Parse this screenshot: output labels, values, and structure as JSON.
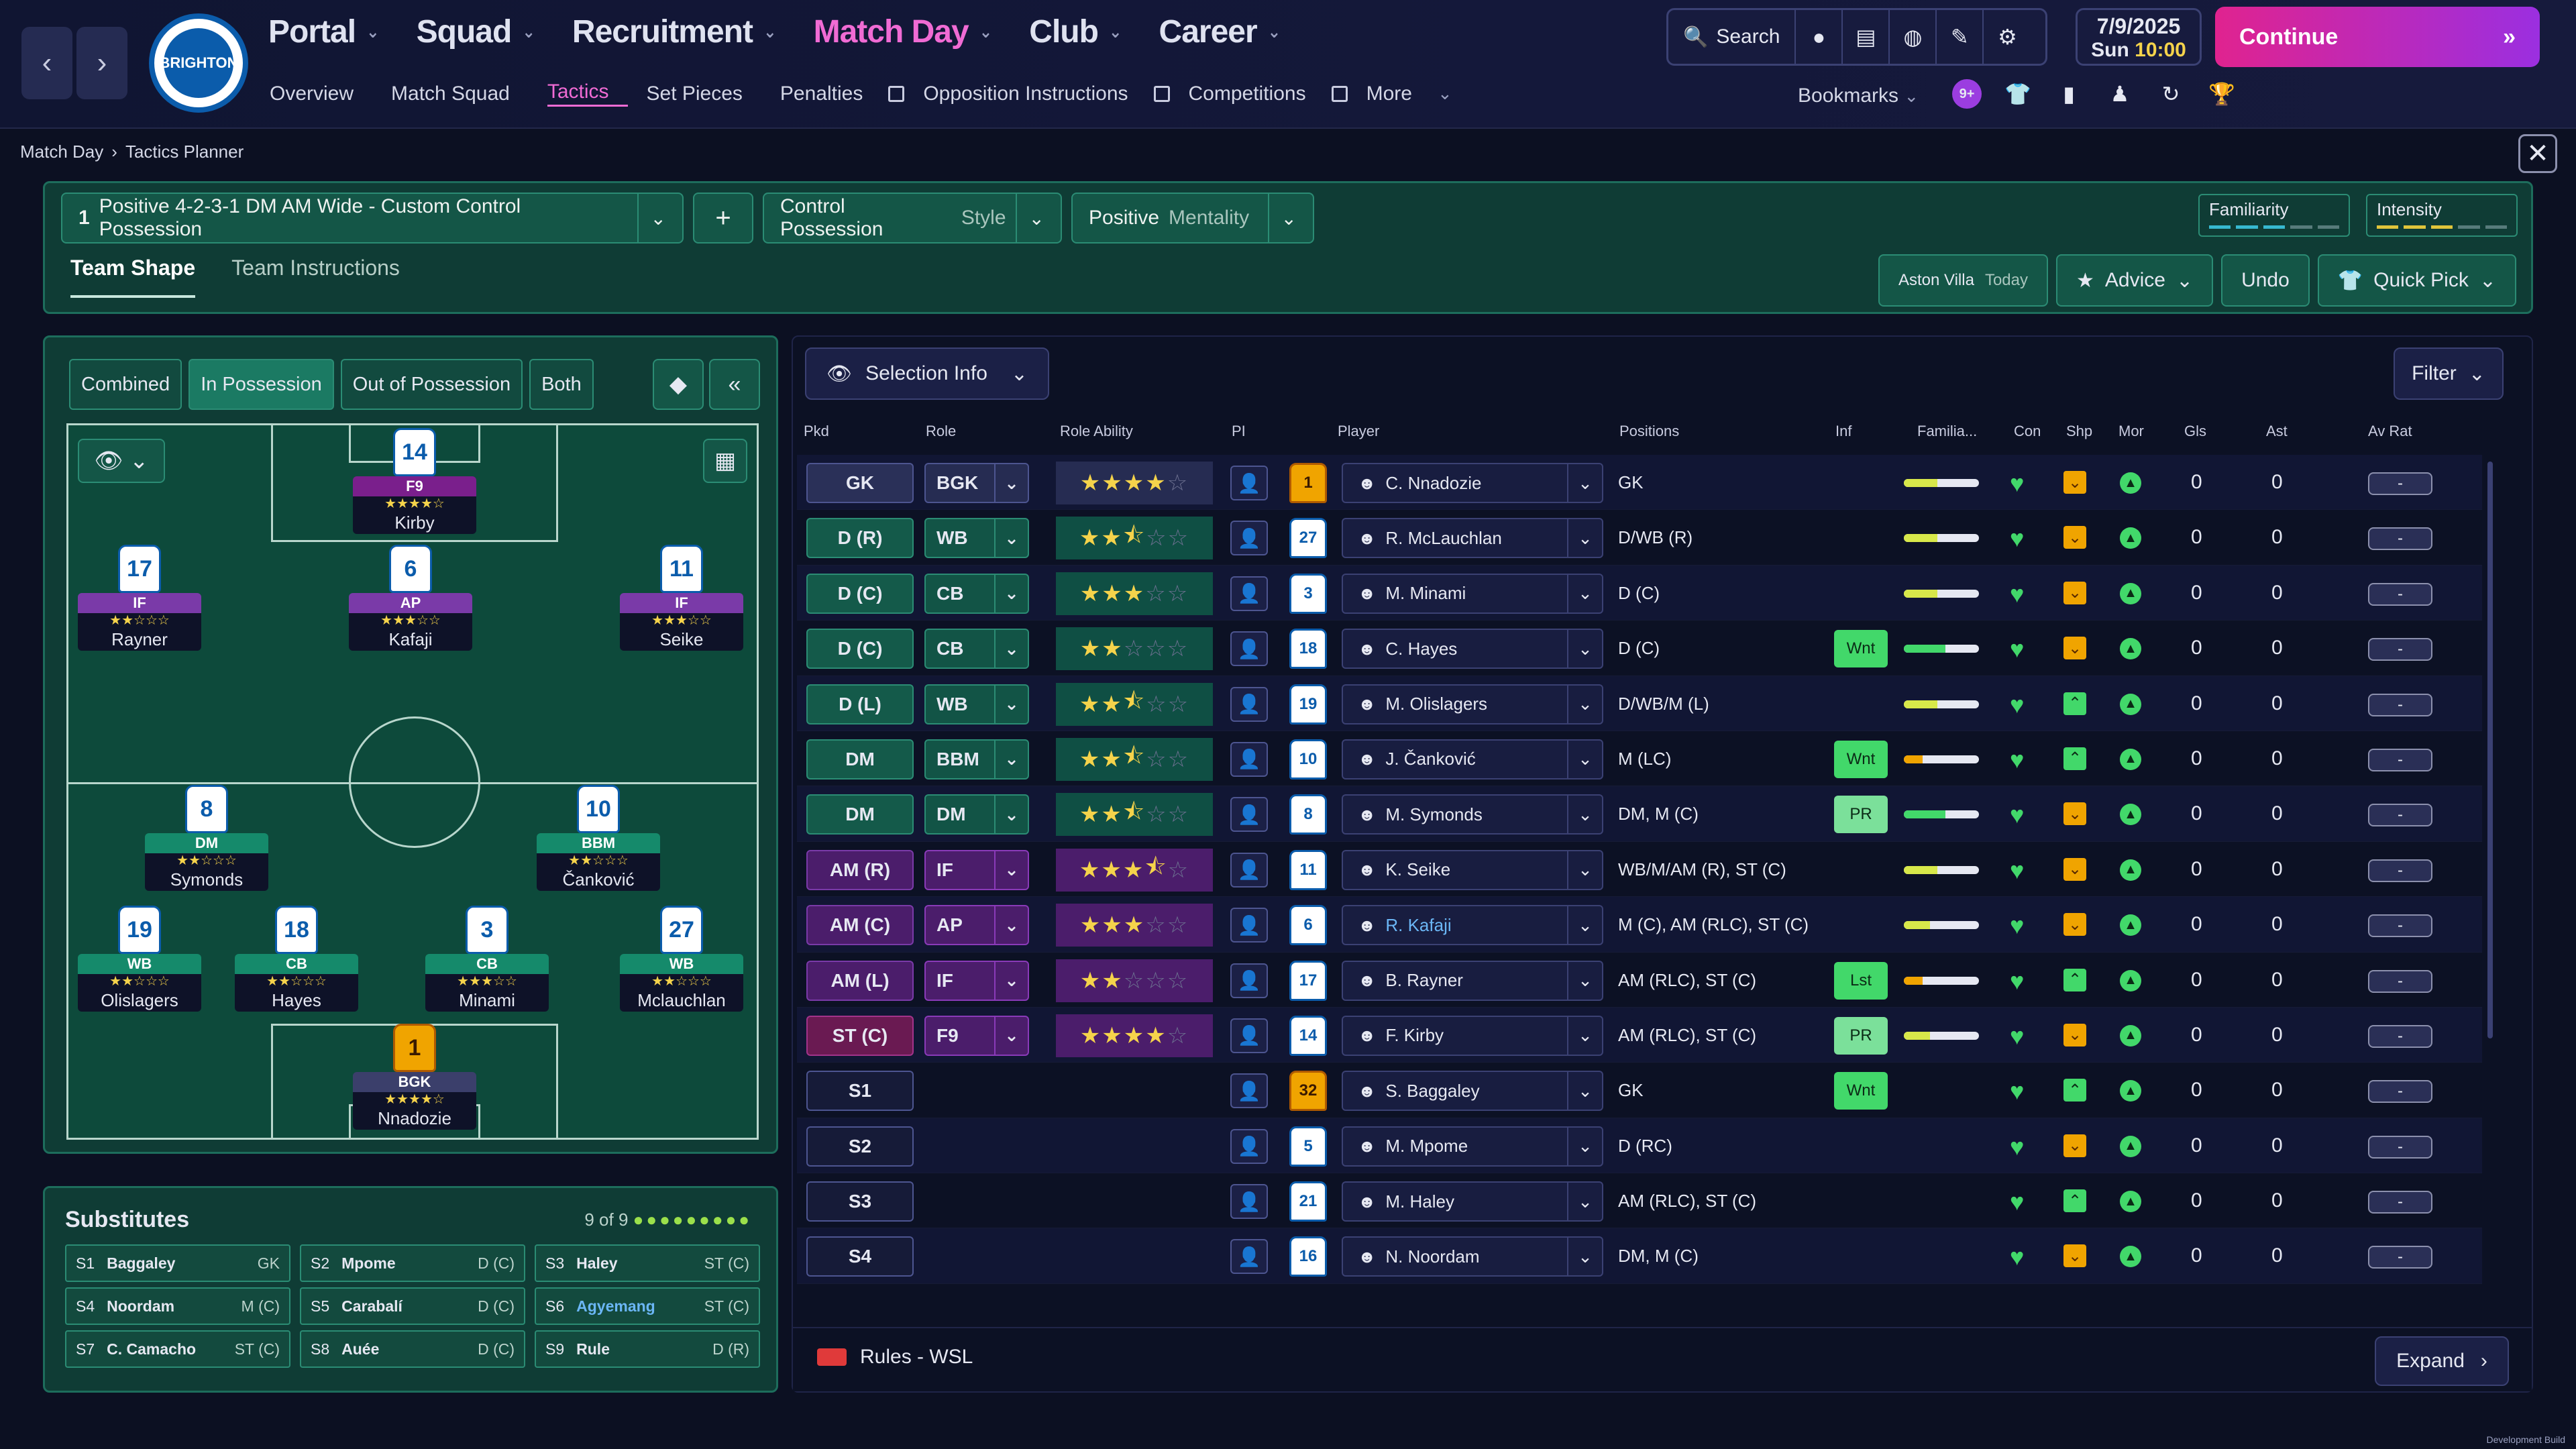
{
  "topnav": {
    "items": [
      {
        "label": "Portal",
        "active": false
      },
      {
        "label": "Squad",
        "active": false
      },
      {
        "label": "Recruitment",
        "active": false
      },
      {
        "label": "Match Day",
        "active": true
      },
      {
        "label": "Club",
        "active": false
      },
      {
        "label": "Career",
        "active": false
      }
    ],
    "subnav": [
      {
        "label": "Overview"
      },
      {
        "label": "Match Squad"
      },
      {
        "label": "Tactics",
        "active": true
      },
      {
        "label": "Set Pieces"
      },
      {
        "label": "Penalties",
        "external": true
      },
      {
        "label": "Opposition Instructions",
        "external": true
      },
      {
        "label": "Competitions",
        "external": true
      },
      {
        "label": "More"
      }
    ],
    "search_label": "Search",
    "date": "7/9/2025",
    "day": "Sun",
    "time": "10:00",
    "continue_label": "Continue",
    "bookmarks_label": "Bookmarks",
    "notif_badge": "9+",
    "club_crest_text": "BRIGHTON"
  },
  "breadcrumb": {
    "items": [
      "Match Day",
      "Tactics Planner"
    ]
  },
  "tactic": {
    "slot": "1",
    "name": "Positive 4-2-3-1 DM AM Wide - Custom Control Possession",
    "style_value": "Control Possession",
    "style_label": "Style",
    "mentality_value": "Positive",
    "mentality_label": "Mentality",
    "familiarity_label": "Familiarity",
    "intensity_label": "Intensity",
    "tabs": [
      "Team Shape",
      "Team Instructions"
    ],
    "opponent": "Aston Villa",
    "opponent_when": "Today",
    "advice_label": "Advice",
    "undo_label": "Undo",
    "quickpick_label": "Quick Pick"
  },
  "pitch": {
    "view_tabs": [
      "Combined",
      "In Possession",
      "Out of Possession",
      "Both"
    ],
    "active_tab": "In Possession",
    "players": [
      {
        "num": "14",
        "role": "F9",
        "stars": "★★★★☆",
        "name": "Kirby",
        "group": "att"
      },
      {
        "num": "17",
        "role": "IF",
        "stars": "★★☆☆☆",
        "name": "Rayner",
        "group": "mid"
      },
      {
        "num": "6",
        "role": "AP",
        "stars": "★★★☆☆",
        "name": "Kafaji",
        "group": "mid"
      },
      {
        "num": "11",
        "role": "IF",
        "stars": "★★★☆☆",
        "name": "Seike",
        "group": "mid"
      },
      {
        "num": "8",
        "role": "DM",
        "stars": "★★☆☆☆",
        "name": "Symonds",
        "group": "dm"
      },
      {
        "num": "10",
        "role": "BBM",
        "stars": "★★☆☆☆",
        "name": "Čanković",
        "group": "dm"
      },
      {
        "num": "19",
        "role": "WB",
        "stars": "★★☆☆☆",
        "name": "Olislagers",
        "group": "def"
      },
      {
        "num": "18",
        "role": "CB",
        "stars": "★★☆☆☆",
        "name": "Hayes",
        "group": "def"
      },
      {
        "num": "3",
        "role": "CB",
        "stars": "★★★☆☆",
        "name": "Minami",
        "group": "def"
      },
      {
        "num": "27",
        "role": "WB",
        "stars": "★★☆☆☆",
        "name": "Mclauchlan",
        "group": "def"
      },
      {
        "num": "1",
        "role": "BGK",
        "stars": "★★★★☆",
        "name": "Nnadozie",
        "group": "gkp"
      }
    ]
  },
  "substitutes": {
    "title": "Substitutes",
    "count": "9 of 9",
    "dots": "●●●●●●●●●",
    "items": [
      {
        "slot": "S1",
        "name": "Baggaley",
        "pos": "GK"
      },
      {
        "slot": "S2",
        "name": "Mpome",
        "pos": "D (C)"
      },
      {
        "slot": "S3",
        "name": "Haley",
        "pos": "ST (C)"
      },
      {
        "slot": "S4",
        "name": "Noordam",
        "pos": "M (C)"
      },
      {
        "slot": "S5",
        "name": "Carabalí",
        "pos": "D (C)"
      },
      {
        "slot": "S6",
        "name": "Agyemang",
        "pos": "ST (C)"
      },
      {
        "slot": "S7",
        "name": "C. Camacho",
        "pos": "ST (C)"
      },
      {
        "slot": "S8",
        "name": "Auée",
        "pos": "D (C)"
      },
      {
        "slot": "S9",
        "name": "Rule",
        "pos": "D (R)"
      }
    ]
  },
  "table": {
    "selection_info_label": "Selection Info",
    "filter_label": "Filter",
    "headers": [
      "Pkd",
      "Role",
      "Role Ability",
      "PI",
      "Player",
      "Positions",
      "Inf",
      "Familia...",
      "Con",
      "Shp",
      "Mor",
      "Gls",
      "Ast",
      "Av Rat"
    ],
    "rows": [
      {
        "pkd": "GK",
        "role": "BGK",
        "ability": 4,
        "kit": "1",
        "player": "C. Nnadozie",
        "positions": "GK",
        "inf": "",
        "fam": 0.45,
        "shp": "or",
        "gls": "0",
        "ast": "0",
        "avr": "-",
        "group": "gk",
        "gk": true
      },
      {
        "pkd": "D (R)",
        "role": "WB",
        "ability": 2.5,
        "kit": "27",
        "player": "R. McLauchlan",
        "positions": "D/WB (R)",
        "inf": "",
        "fam": 0.45,
        "shp": "or",
        "gls": "0",
        "ast": "0",
        "avr": "-",
        "group": "def"
      },
      {
        "pkd": "D (C)",
        "role": "CB",
        "ability": 3,
        "kit": "3",
        "player": "M. Minami",
        "positions": "D (C)",
        "inf": "",
        "fam": 0.45,
        "shp": "or",
        "gls": "0",
        "ast": "0",
        "avr": "-",
        "group": "def"
      },
      {
        "pkd": "D (C)",
        "role": "CB",
        "ability": 2,
        "kit": "18",
        "player": "C. Hayes",
        "positions": "D (C)",
        "inf": "Wnt",
        "fam": 0.55,
        "shp": "or",
        "gls": "0",
        "ast": "0",
        "avr": "-",
        "group": "def",
        "famhi": true
      },
      {
        "pkd": "D (L)",
        "role": "WB",
        "ability": 2.5,
        "kit": "19",
        "player": "M. Olislagers",
        "positions": "D/WB/M (L)",
        "inf": "",
        "fam": 0.45,
        "shp": "gr",
        "gls": "0",
        "ast": "0",
        "avr": "-",
        "group": "def"
      },
      {
        "pkd": "DM",
        "role": "BBM",
        "ability": 2.5,
        "kit": "10",
        "player": "J. Čanković",
        "positions": "M (LC)",
        "inf": "Wnt",
        "fam": 0.25,
        "shp": "gr",
        "gls": "0",
        "ast": "0",
        "avr": "-",
        "group": "dm",
        "famlo": true
      },
      {
        "pkd": "DM",
        "role": "DM",
        "ability": 2.5,
        "kit": "8",
        "player": "M. Symonds",
        "positions": "DM, M (C)",
        "inf": "PR",
        "fam": 0.55,
        "shp": "or",
        "gls": "0",
        "ast": "0",
        "avr": "-",
        "group": "dm",
        "famhi": true
      },
      {
        "pkd": "AM (R)",
        "role": "IF",
        "ability": 3.5,
        "kit": "11",
        "player": "K. Seike",
        "positions": "WB/M/AM (R), ST (C)",
        "inf": "",
        "fam": 0.45,
        "shp": "or",
        "gls": "0",
        "ast": "0",
        "avr": "-",
        "group": "mid"
      },
      {
        "pkd": "AM (C)",
        "role": "AP",
        "ability": 3,
        "kit": "6",
        "player": "R. Kafaji",
        "positions": "M (C), AM (RLC), ST (C)",
        "inf": "",
        "fam": 0.35,
        "shp": "or",
        "gls": "0",
        "ast": "0",
        "avr": "-",
        "group": "mid",
        "link": true
      },
      {
        "pkd": "AM (L)",
        "role": "IF",
        "ability": 2,
        "kit": "17",
        "player": "B. Rayner",
        "positions": "AM (RLC), ST (C)",
        "inf": "Lst",
        "fam": 0.25,
        "shp": "gr",
        "gls": "0",
        "ast": "0",
        "avr": "-",
        "group": "mid",
        "famlo": true
      },
      {
        "pkd": "ST (C)",
        "role": "F9",
        "ability": 4,
        "kit": "14",
        "player": "F. Kirby",
        "positions": "AM (RLC), ST (C)",
        "inf": "PR",
        "fam": 0.35,
        "shp": "or",
        "gls": "0",
        "ast": "0",
        "avr": "-",
        "group": "att"
      },
      {
        "pkd": "S1",
        "role": "",
        "ability": 0,
        "kit": "32",
        "player": "S. Baggaley",
        "positions": "GK",
        "inf": "Wnt",
        "fam": 0,
        "shp": "gr",
        "gls": "0",
        "ast": "0",
        "avr": "-",
        "group": "sub",
        "gk": true
      },
      {
        "pkd": "S2",
        "role": "",
        "ability": 0,
        "kit": "5",
        "player": "M. Mpome",
        "positions": "D (RC)",
        "inf": "",
        "fam": 0,
        "shp": "or",
        "gls": "0",
        "ast": "0",
        "avr": "-",
        "group": "sub"
      },
      {
        "pkd": "S3",
        "role": "",
        "ability": 0,
        "kit": "21",
        "player": "M. Haley",
        "positions": "AM (RLC), ST (C)",
        "inf": "",
        "fam": 0,
        "shp": "gr",
        "gls": "0",
        "ast": "0",
        "avr": "-",
        "group": "sub"
      },
      {
        "pkd": "S4",
        "role": "",
        "ability": 0,
        "kit": "16",
        "player": "N. Noordam",
        "positions": "DM, M (C)",
        "inf": "",
        "fam": 0,
        "shp": "or",
        "gls": "0",
        "ast": "0",
        "avr": "-",
        "group": "sub"
      }
    ],
    "rules_label": "Rules - WSL",
    "expand_label": "Expand"
  },
  "footer": {
    "dev_build": "Development Build"
  }
}
